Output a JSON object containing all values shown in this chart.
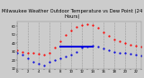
{
  "title": "Milwaukee Weather Outdoor Temperature vs Dew Point (24 Hours)",
  "background_color": "#cccccc",
  "plot_bg": "#cccccc",
  "header_color": "#888888",
  "grid_color": "#999999",
  "temp_color": "#ff0000",
  "dew_color": "#0000dd",
  "line_color": "#0000dd",
  "hours": [
    0,
    1,
    2,
    3,
    4,
    5,
    6,
    7,
    8,
    9,
    10,
    11,
    12,
    13,
    14,
    15,
    16,
    17,
    18,
    19,
    20,
    21,
    22,
    23
  ],
  "temp": [
    32,
    30,
    28,
    28,
    27,
    26,
    29,
    35,
    42,
    50,
    55,
    59,
    61,
    62,
    61,
    58,
    53,
    48,
    44,
    42,
    40,
    38,
    37,
    36
  ],
  "dew": [
    28,
    26,
    22,
    18,
    16,
    14,
    18,
    20,
    22,
    24,
    26,
    30,
    35,
    36,
    37,
    36,
    34,
    32,
    30,
    29,
    28,
    27,
    26,
    25
  ],
  "ylim": [
    10,
    65
  ],
  "xlim": [
    0,
    23
  ],
  "line_x_start": 8,
  "line_x_end": 14,
  "line_y": 36,
  "marker_size": 1.2,
  "title_fontsize": 3.8,
  "tick_fontsize": 2.8,
  "dpi": 100
}
